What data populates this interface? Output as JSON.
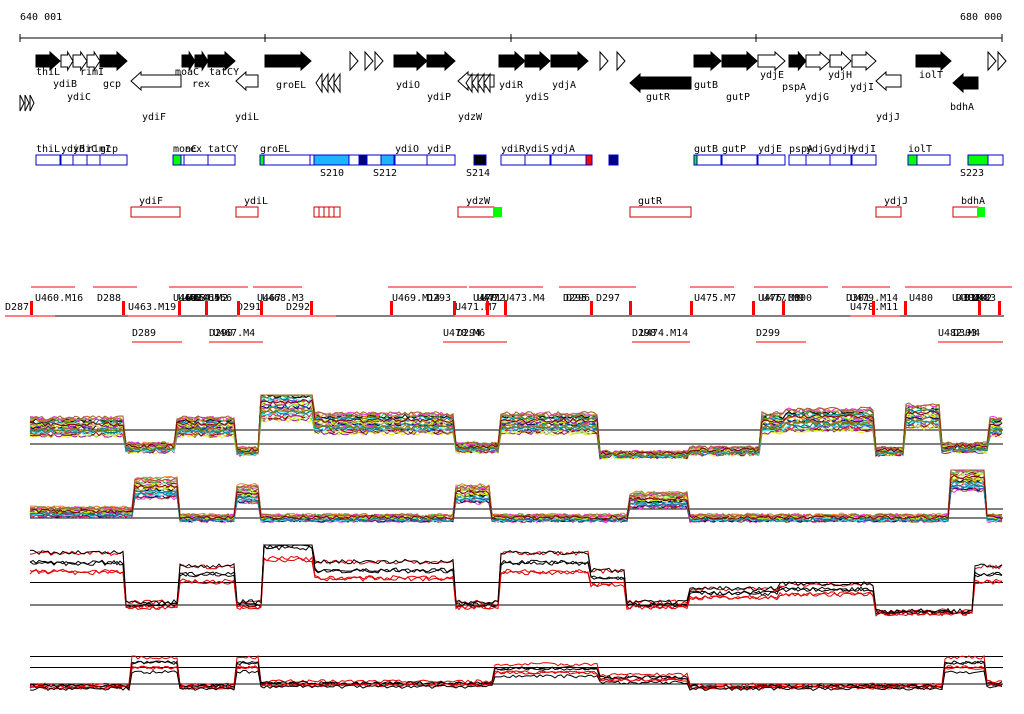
{
  "coords": {
    "start": "640 001",
    "end": "680 000"
  },
  "colors": {
    "gene": "#000000",
    "operon_outline": "#0000cc",
    "operon_fill_light": "#1eb4ff",
    "operon_fill_dark": "#000080",
    "operon_red": "#ff0000",
    "green": "#00ff00",
    "minus_outline": "#cc0000"
  },
  "genes": [
    {
      "name": "thiL",
      "strand": "+",
      "filled": true
    },
    {
      "name": "ydiB",
      "strand": "+",
      "filled": false
    },
    {
      "name": "ydiC",
      "strand": "+",
      "filled": false
    },
    {
      "name": "rimI",
      "strand": "+",
      "filled": false
    },
    {
      "name": "gcp",
      "strand": "+",
      "filled": true
    },
    {
      "name": "ydiF",
      "strand": "-",
      "filled": false
    },
    {
      "name": "moaC",
      "strand": "+",
      "filled": true
    },
    {
      "name": "rex",
      "strand": "+",
      "filled": true
    },
    {
      "name": "tatCY",
      "strand": "+",
      "filled": true
    },
    {
      "name": "ydiL",
      "strand": "-",
      "filled": false
    },
    {
      "name": "groEL",
      "strand": "+",
      "filled": true
    },
    {
      "name": "ydiO",
      "strand": "+",
      "filled": true
    },
    {
      "name": "ydiP",
      "strand": "+",
      "filled": true
    },
    {
      "name": "ydzW",
      "strand": "-",
      "filled": false
    },
    {
      "name": "ydiR",
      "strand": "+",
      "filled": true
    },
    {
      "name": "ydiS",
      "strand": "+",
      "filled": true
    },
    {
      "name": "ydjA",
      "strand": "+",
      "filled": true
    },
    {
      "name": "gutR",
      "strand": "-",
      "filled": true
    },
    {
      "name": "gutB",
      "strand": "+",
      "filled": true
    },
    {
      "name": "gutP",
      "strand": "+",
      "filled": true
    },
    {
      "name": "ydjE",
      "strand": "+",
      "filled": false
    },
    {
      "name": "pspA",
      "strand": "+",
      "filled": true
    },
    {
      "name": "ydjG",
      "strand": "+",
      "filled": false
    },
    {
      "name": "ydjH",
      "strand": "+",
      "filled": false
    },
    {
      "name": "ydjI",
      "strand": "+",
      "filled": false
    },
    {
      "name": "ydjJ",
      "strand": "-",
      "filled": false
    },
    {
      "name": "iolT",
      "strand": "+",
      "filled": true
    },
    {
      "name": "bdhA",
      "strand": "-",
      "filled": true
    }
  ],
  "operons_plus": [
    "thiL",
    "ydiB",
    "ydiC",
    "rimI",
    "gcp",
    "moaC",
    "rex",
    "tatCY",
    "groEL",
    "ydiO",
    "ydiP",
    "ydiR",
    "ydiS",
    "ydjA",
    "gutB",
    "gutP",
    "ydjE",
    "pspA",
    "ydjG",
    "ydjH",
    "ydjI",
    "iolT"
  ],
  "operons_minus": [
    "ydiF",
    "ydiL",
    "ydzW",
    "gutR",
    "ydjJ",
    "bdhA"
  ],
  "sites": [
    "S210",
    "S212",
    "S214",
    "S223"
  ],
  "segments_top": [
    "U460.M16",
    "D288",
    "U461",
    "U462",
    "U463",
    "U464.M2",
    "U465",
    "U466",
    "U467",
    "U468.M3",
    "U469.M14",
    "D293",
    "U470",
    "U471",
    "U472",
    "U473.M4",
    "D295",
    "D296",
    "D297",
    "U475.M7",
    "U476.M8",
    "U477.M9",
    "D300",
    "D301",
    "U479.M14",
    "U480",
    "U481",
    "D302",
    "D304",
    "U482",
    "U483"
  ],
  "segments_bottom": [
    "D287",
    "D289",
    "U463.M19",
    "D290",
    "D291",
    "U467.M4",
    "D292",
    "D294",
    "U470.M6",
    "U471.M7",
    "D298",
    "U474.M14",
    "D299",
    "U478.M11",
    "D303",
    "U482.M4"
  ],
  "tracks": [
    "tiling_plus",
    "tiling_minus",
    "red_black_plus",
    "red_black_minus"
  ]
}
